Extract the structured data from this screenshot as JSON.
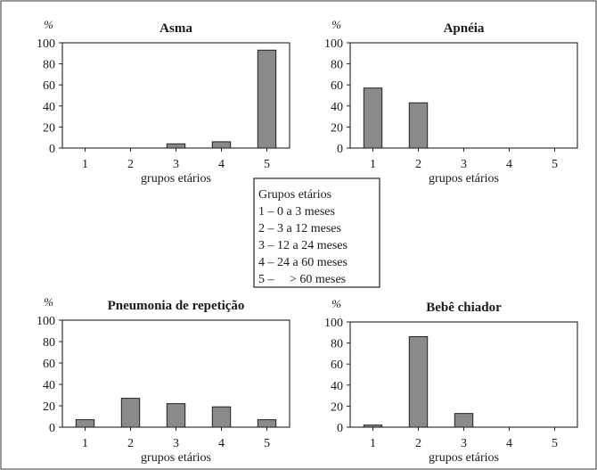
{
  "chart_data": [
    {
      "type": "bar",
      "title": "Asma",
      "ylabel": "%",
      "xlabel": "grupos etários",
      "categories": [
        "1",
        "2",
        "3",
        "4",
        "5"
      ],
      "values": [
        0,
        0,
        4,
        6,
        93
      ],
      "ylim": [
        0,
        100
      ],
      "yticks": [
        "0",
        "20",
        "40",
        "60",
        "80",
        "100"
      ],
      "bar_color": "#8a8a8a"
    },
    {
      "type": "bar",
      "title": "Apnéia",
      "ylabel": "%",
      "xlabel": "grupos etários",
      "categories": [
        "1",
        "2",
        "3",
        "4",
        "5"
      ],
      "values": [
        57,
        43,
        0,
        0,
        0
      ],
      "ylim": [
        0,
        100
      ],
      "yticks": [
        "0",
        "20",
        "40",
        "60",
        "80",
        "100"
      ],
      "bar_color": "#8a8a8a"
    },
    {
      "type": "bar",
      "title": "Pneumonia de repetição",
      "ylabel": "%",
      "xlabel": "grupos etários",
      "categories": [
        "1",
        "2",
        "3",
        "4",
        "5"
      ],
      "values": [
        7,
        27,
        22,
        19,
        7
      ],
      "ylim": [
        0,
        100
      ],
      "yticks": [
        "0",
        "20",
        "40",
        "60",
        "80",
        "100"
      ],
      "bar_color": "#8a8a8a"
    },
    {
      "type": "bar",
      "title": "Bebê chiador",
      "ylabel": "%",
      "xlabel": "grupos etários",
      "categories": [
        "1",
        "2",
        "3",
        "4",
        "5"
      ],
      "values": [
        2,
        86,
        13,
        0,
        0
      ],
      "ylim": [
        0,
        100
      ],
      "yticks": [
        "0",
        "20",
        "40",
        "60",
        "80",
        "100"
      ],
      "bar_color": "#8a8a8a"
    }
  ],
  "legend": {
    "title": "Grupos etários",
    "items": [
      "1 – 0 a 3 meses",
      "2 – 3 a 12 meses",
      "3 – 12 a 24 meses",
      "4 – 24 a 60 meses",
      "5 –     > 60 meses"
    ]
  }
}
